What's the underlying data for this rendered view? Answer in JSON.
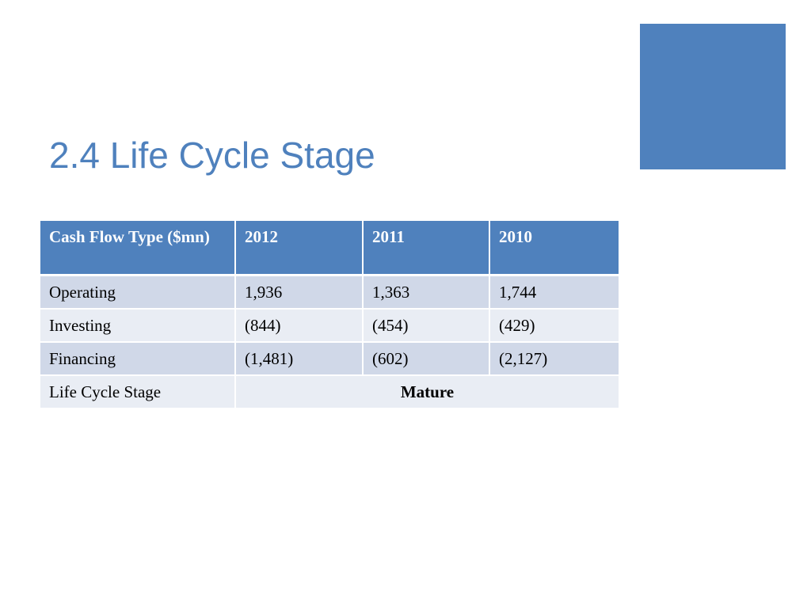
{
  "slide": {
    "title": "2.4 Life Cycle Stage",
    "accent_color": "#4f81bd"
  },
  "table": {
    "header_color": "#4f81bd",
    "row_band_dark": "#d0d8e8",
    "row_band_light": "#e9edf4",
    "headers": [
      "Cash Flow Type ($mn)",
      "2012",
      "2011",
      "2010"
    ],
    "rows": [
      {
        "label": "Operating",
        "values": [
          "1,936",
          "1,363",
          "1,744"
        ]
      },
      {
        "label": "Investing",
        "values": [
          "(844)",
          "(454)",
          "(429)"
        ]
      },
      {
        "label": "Financing",
        "values": [
          "(1,481)",
          "(602)",
          "(2,127)"
        ]
      }
    ],
    "summary_row": {
      "label": "Life Cycle Stage",
      "value": "Mature"
    }
  }
}
